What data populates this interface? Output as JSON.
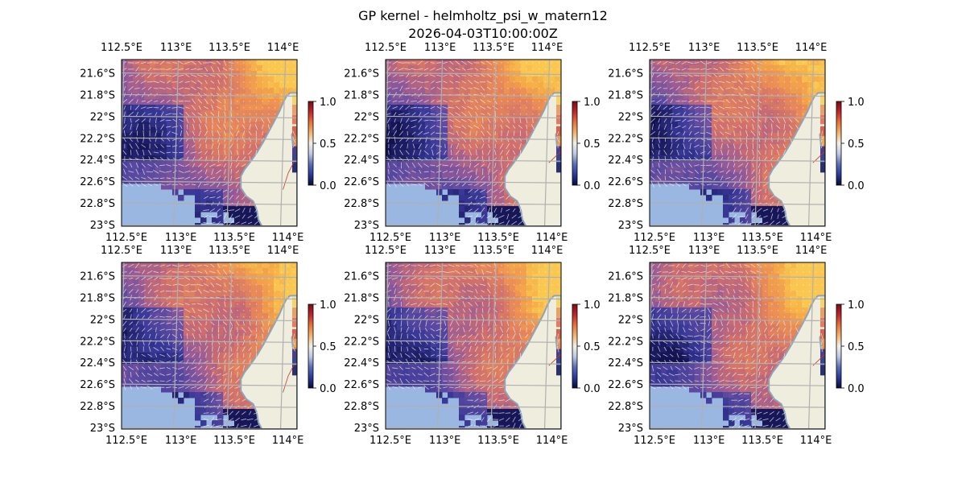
{
  "figure": {
    "title": "GP kernel - helmholtz_psi_w_matern12",
    "subtitle": "2026-04-03T10:00:00Z"
  },
  "map": {
    "lon_ticks": [
      "112.5°E",
      "113°E",
      "113.5°E",
      "114°E"
    ],
    "lat_ticks": [
      "21.6°S",
      "21.8°S",
      "22°S",
      "22.2°S",
      "22.4°S",
      "22.6°S",
      "22.8°S",
      "23°S"
    ],
    "colors": {
      "ocean": "#9ab7e2",
      "land": "#efeddd",
      "coast": "#8ea3b8",
      "grid": "#b0b0b0",
      "arrows": "#f2f2f2",
      "track": "#c0392b"
    }
  },
  "colorbar": {
    "ticks": [
      "1.0",
      "0.5",
      "0.0"
    ],
    "colormap": [
      "#050a3c",
      "#2b3a9a",
      "#5a6fb8",
      "#bfc8e0",
      "#f0efe8",
      "#f3b56b",
      "#e8723a",
      "#c0262d",
      "#7a0b13"
    ]
  },
  "panels": [
    {
      "id": 1,
      "row": 0,
      "col": 0
    },
    {
      "id": 2,
      "row": 0,
      "col": 1
    },
    {
      "id": 3,
      "row": 0,
      "col": 2
    },
    {
      "id": 4,
      "row": 1,
      "col": 0
    },
    {
      "id": 5,
      "row": 1,
      "col": 1
    },
    {
      "id": 6,
      "row": 1,
      "col": 2
    }
  ]
}
